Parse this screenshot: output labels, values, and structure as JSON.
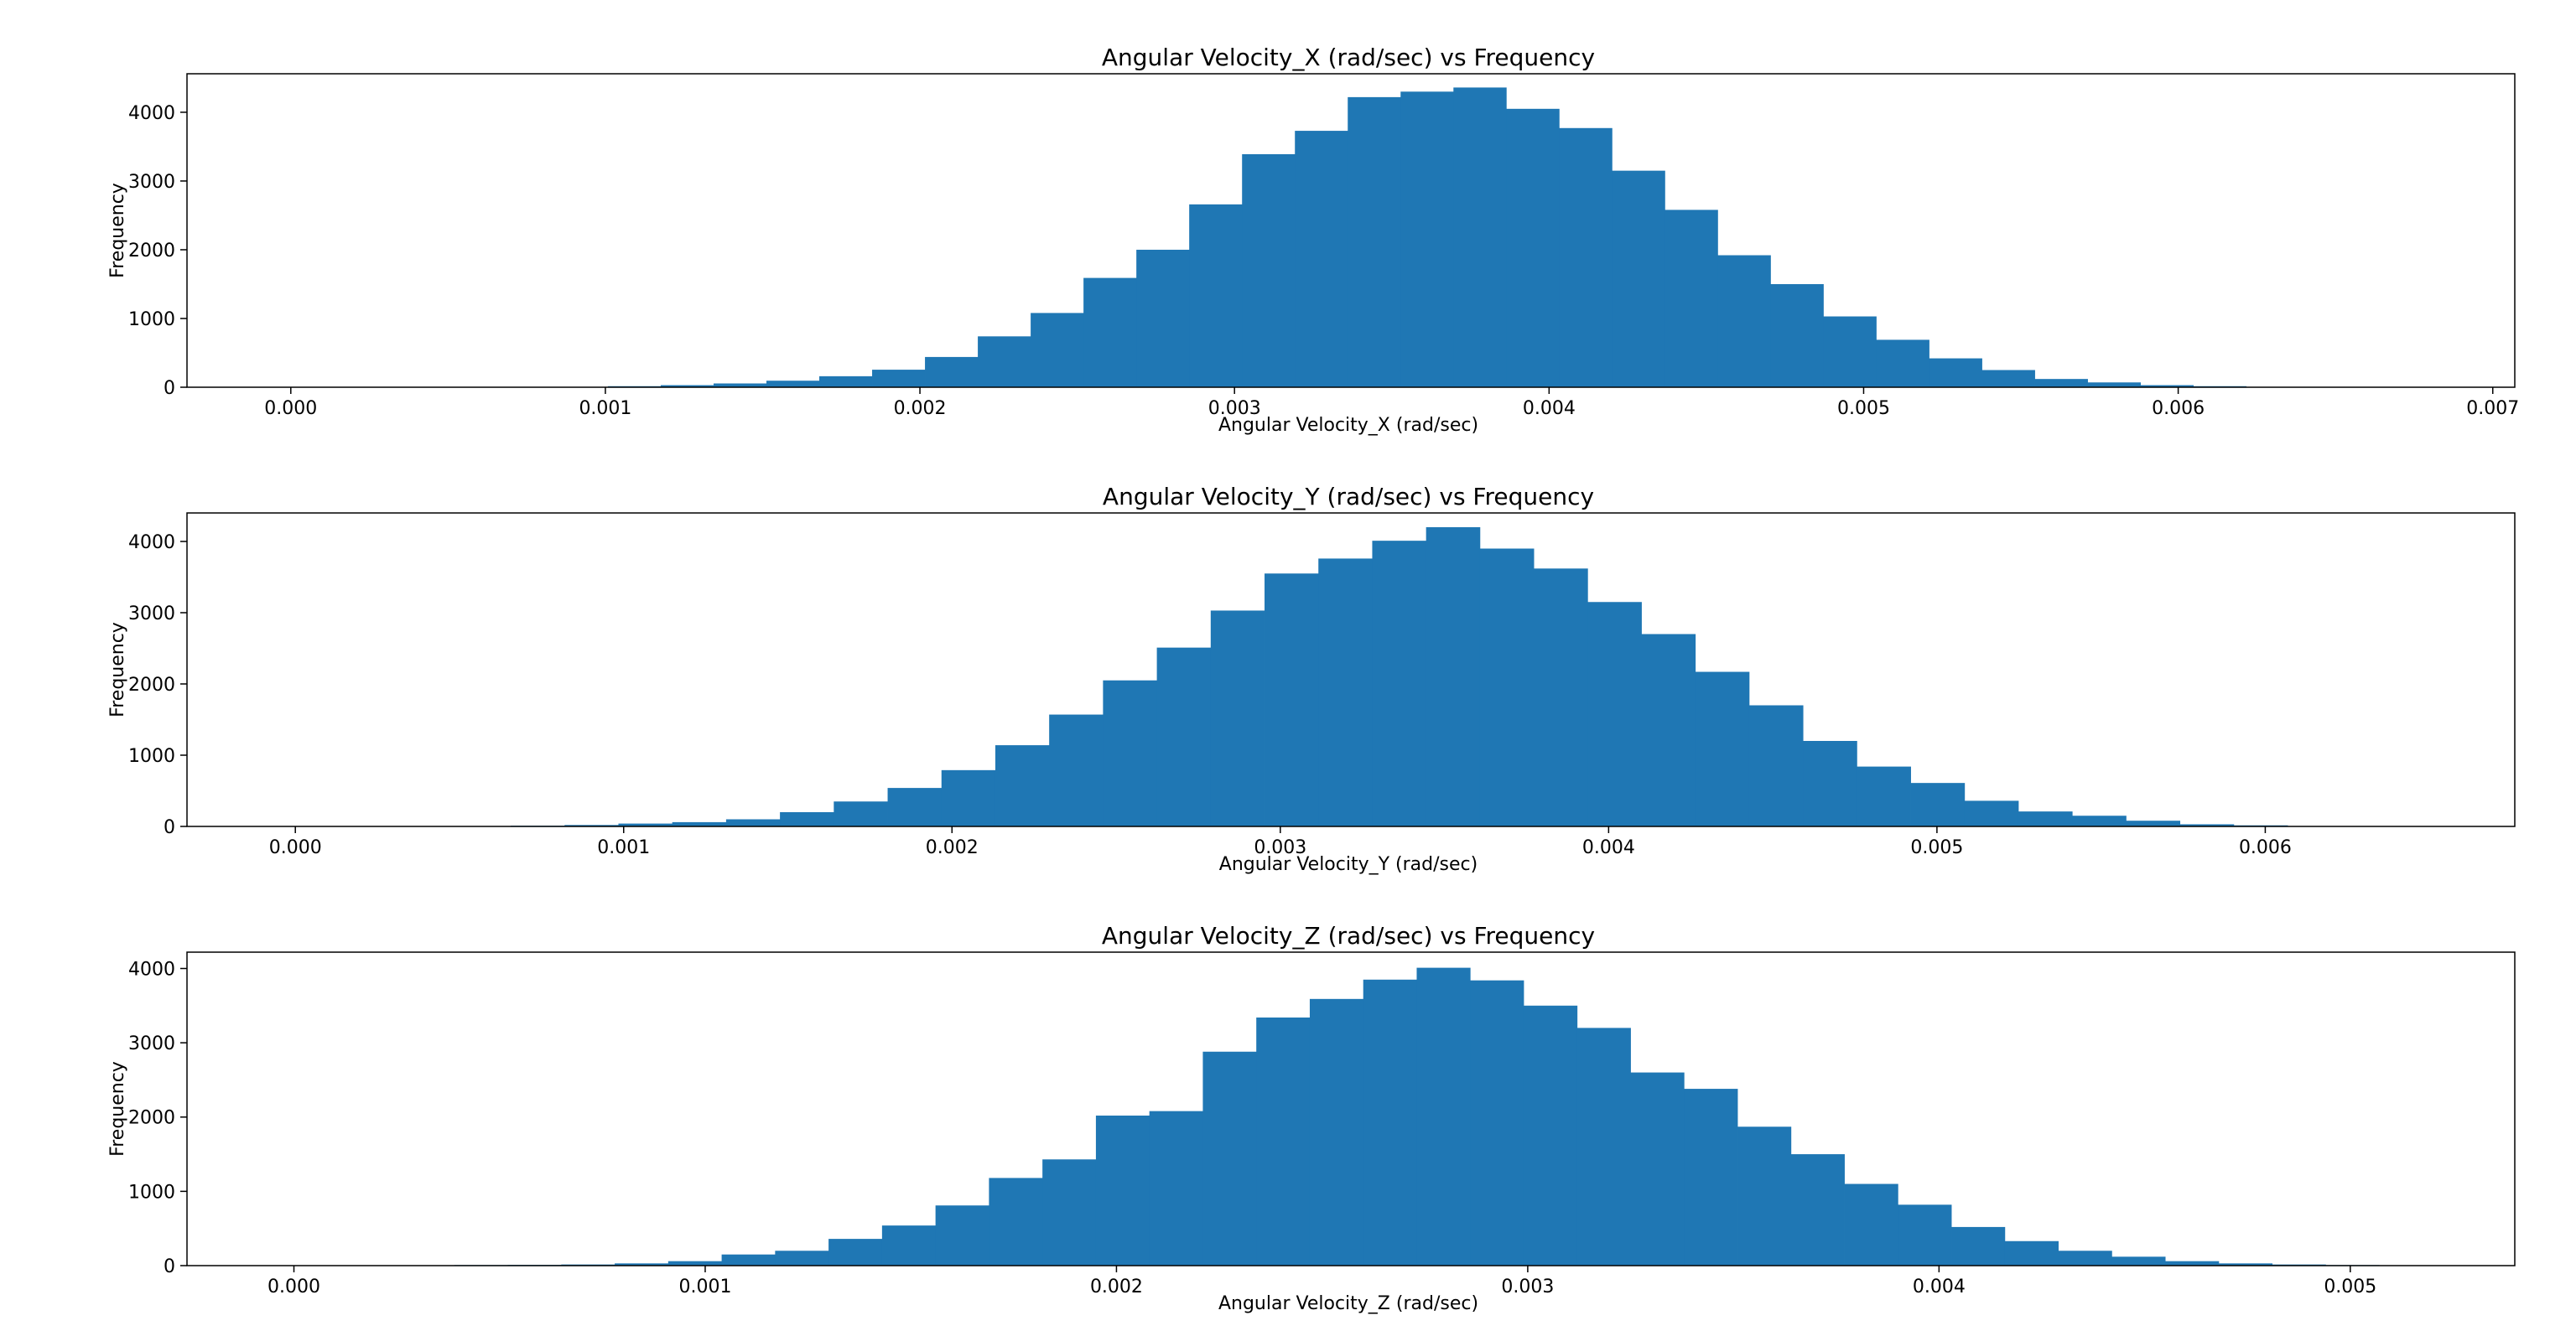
{
  "colors": {
    "bar": "#1f77b4",
    "axis": "#000000",
    "background": "#ffffff"
  },
  "chart_data": [
    {
      "type": "bar",
      "title": "Angular Velocity_X (rad/sec) vs Frequency",
      "xlabel": "Angular Velocity_X (rad/sec)",
      "ylabel": "Frequency",
      "xlim": [
        -0.00033,
        0.00707
      ],
      "ylim": [
        0,
        4560
      ],
      "xticks": [
        0.0,
        0.001,
        0.002,
        0.003,
        0.004,
        0.005,
        0.006,
        0.007
      ],
      "xtick_labels": [
        "0.000",
        "0.001",
        "0.002",
        "0.003",
        "0.004",
        "0.005",
        "0.006",
        "0.007"
      ],
      "yticks": [
        0,
        1000,
        2000,
        3000,
        4000
      ],
      "ytick_labels": [
        "0",
        "1000",
        "2000",
        "3000",
        "4000"
      ],
      "bin_start": 0.0,
      "bin_width": 0.000168,
      "values": [
        0,
        0,
        0,
        0,
        3,
        6,
        15,
        30,
        55,
        95,
        160,
        255,
        440,
        740,
        1080,
        1590,
        2000,
        2660,
        3390,
        3730,
        4220,
        4300,
        4360,
        4050,
        3770,
        3150,
        2580,
        1920,
        1500,
        1030,
        690,
        420,
        250,
        120,
        70,
        30,
        15,
        6,
        3,
        0,
        0
      ],
      "grid": false
    },
    {
      "type": "bar",
      "title": "Angular Velocity_Y (rad/sec) vs Frequency",
      "xlabel": "Angular Velocity_Y (rad/sec)",
      "ylabel": "Frequency",
      "xlim": [
        -0.00033,
        0.00676
      ],
      "ylim": [
        0,
        4400
      ],
      "xticks": [
        0.0,
        0.001,
        0.002,
        0.003,
        0.004,
        0.005,
        0.006
      ],
      "xtick_labels": [
        "0.000",
        "0.001",
        "0.002",
        "0.003",
        "0.004",
        "0.005",
        "0.006"
      ],
      "yticks": [
        0,
        1000,
        2000,
        3000,
        4000
      ],
      "ytick_labels": [
        "0",
        "1000",
        "2000",
        "3000",
        "4000"
      ],
      "bin_start": 0.0,
      "bin_width": 0.000164,
      "values": [
        0,
        2,
        3,
        5,
        10,
        20,
        40,
        60,
        100,
        200,
        350,
        540,
        790,
        1140,
        1570,
        2050,
        2510,
        3030,
        3550,
        3760,
        4010,
        4200,
        3900,
        3620,
        3150,
        2700,
        2170,
        1700,
        1200,
        840,
        610,
        360,
        210,
        150,
        80,
        30,
        15,
        5,
        2,
        1,
        2
      ],
      "grid": false
    },
    {
      "type": "bar",
      "title": "Angular Velocity_Z (rad/sec) vs Frequency",
      "xlabel": "Angular Velocity_Z (rad/sec)",
      "ylabel": "Frequency",
      "xlim": [
        -0.00026,
        0.0054
      ],
      "ylim": [
        0,
        4220
      ],
      "xticks": [
        0.0,
        0.001,
        0.002,
        0.003,
        0.004,
        0.005
      ],
      "xtick_labels": [
        "0.000",
        "0.001",
        "0.002",
        "0.003",
        "0.004",
        "0.005"
      ],
      "yticks": [
        0,
        1000,
        2000,
        3000,
        4000
      ],
      "ytick_labels": [
        "0",
        "1000",
        "2000",
        "3000",
        "4000"
      ],
      "bin_start": 0.0,
      "bin_width": 0.00013,
      "values": [
        0,
        0,
        5,
        8,
        10,
        15,
        30,
        60,
        150,
        200,
        360,
        540,
        810,
        1180,
        1430,
        2020,
        2080,
        2880,
        3340,
        3590,
        3850,
        4010,
        3840,
        3500,
        3200,
        2600,
        2380,
        1870,
        1500,
        1100,
        820,
        520,
        330,
        200,
        120,
        60,
        30,
        15,
        8,
        3,
        0
      ],
      "grid": false
    }
  ]
}
